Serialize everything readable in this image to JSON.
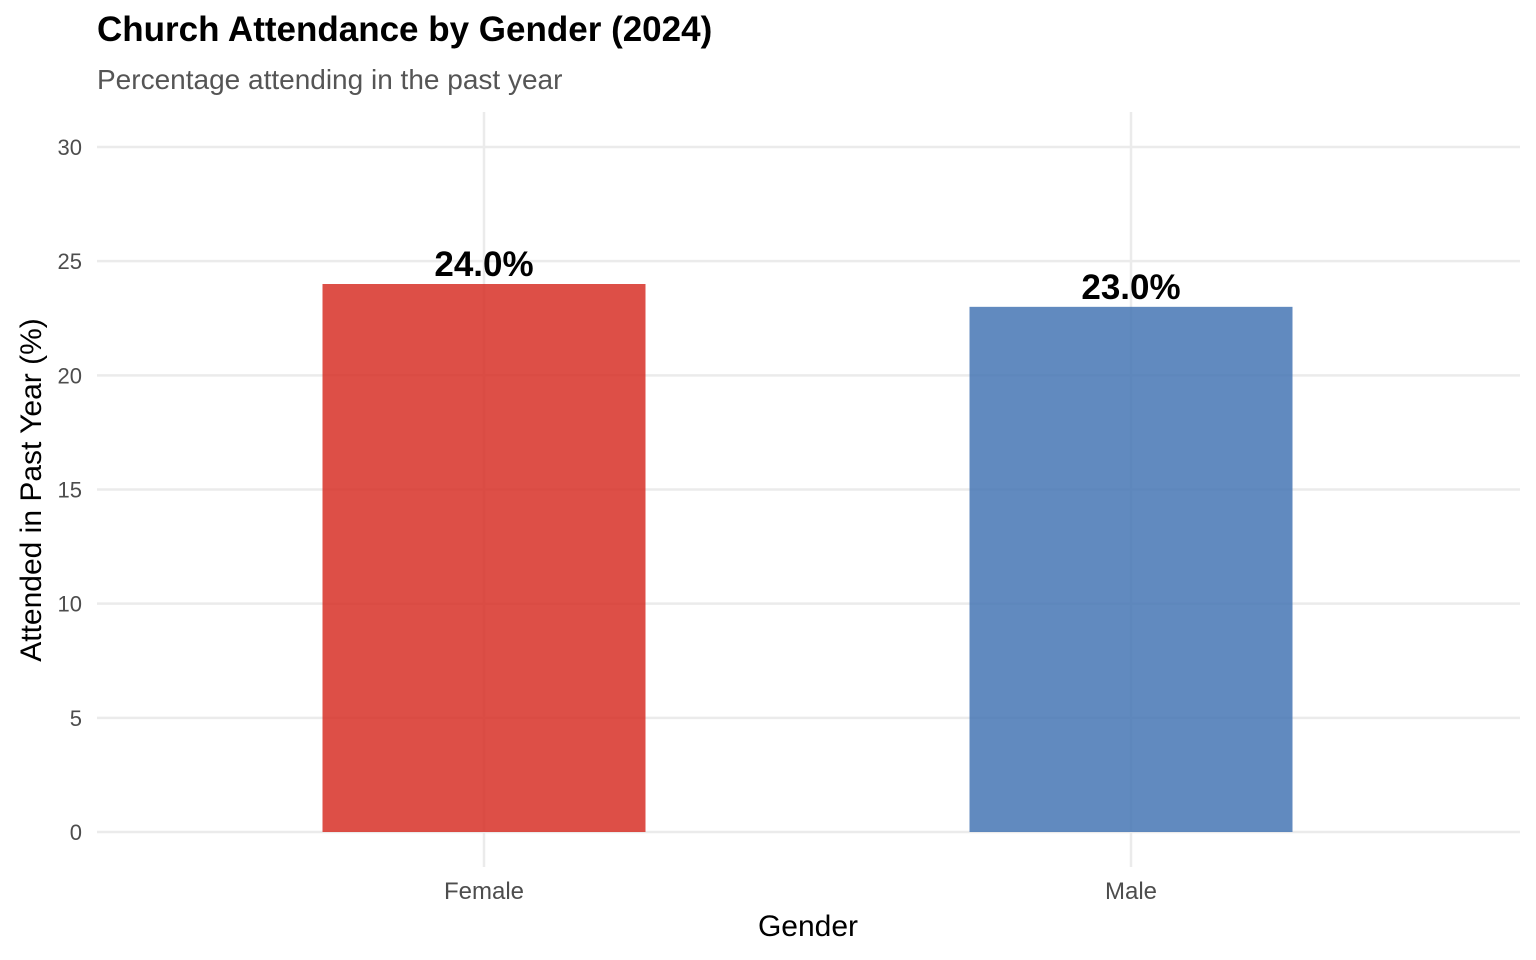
{
  "chart_data": {
    "type": "bar",
    "title": "Church Attendance by Gender (2024)",
    "subtitle": "Percentage attending in the past year",
    "xlabel": "Gender",
    "ylabel": "Attended in Past Year (%)",
    "categories": [
      "Female",
      "Male"
    ],
    "values": [
      24.0,
      23.0
    ],
    "data_labels": [
      "24.0%",
      "23.0%"
    ],
    "bar_colors": [
      "#d73027",
      "#4575b4"
    ],
    "ylim": [
      0,
      31
    ],
    "yticks": [
      0,
      5,
      10,
      15,
      20,
      25,
      30
    ],
    "grid": true,
    "legend": "none"
  }
}
